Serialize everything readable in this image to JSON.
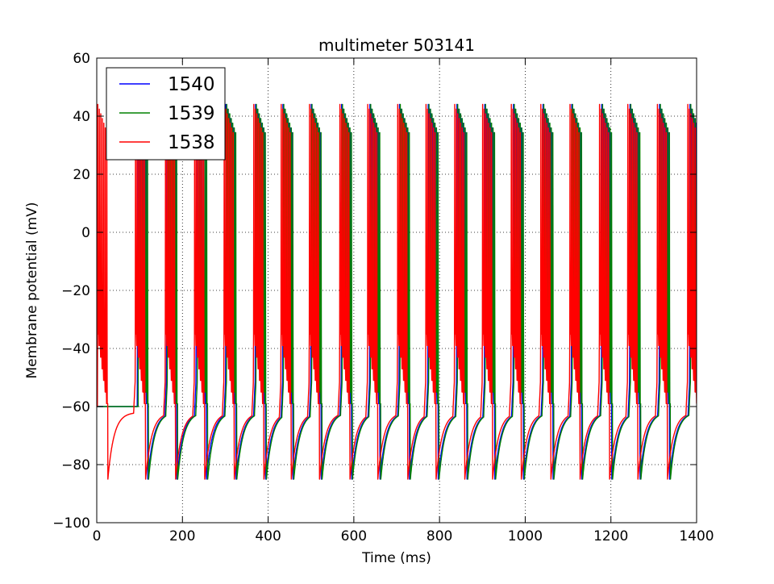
{
  "chart_data": {
    "type": "line",
    "title": "multimeter 503141",
    "xlabel": "Time (ms)",
    "ylabel": "Membrane potential (mV)",
    "xlim": [
      0,
      1400
    ],
    "ylim": [
      -100,
      60
    ],
    "xticks": [
      0,
      200,
      400,
      600,
      800,
      1000,
      1200,
      1400
    ],
    "yticks": [
      -100,
      -80,
      -60,
      -40,
      -20,
      0,
      20,
      40,
      60
    ],
    "grid": true,
    "legend_position": "top-left",
    "series": [
      {
        "name": "1540",
        "color": "#0000ff",
        "burst_times_ms": [
          95,
          163,
          232,
          301,
          370,
          434,
          500,
          571,
          637,
          706,
          773,
          840,
          905,
          972,
          1041,
          1108,
          1178,
          1244,
          1313,
          1384
        ]
      },
      {
        "name": "1539",
        "color": "#008000",
        "burst_times_ms": [
          97,
          165,
          235,
          303,
          372,
          436,
          502,
          573,
          639,
          708,
          775,
          842,
          907,
          974,
          1043,
          1110,
          1180,
          1246,
          1315,
          1386
        ]
      },
      {
        "name": "1538",
        "color": "#ff0000",
        "burst_times_ms": [
          2,
          90,
          160,
          228,
          297,
          366,
          430,
          496,
          567,
          632,
          702,
          768,
          835,
          900,
          967,
          1036,
          1104,
          1173,
          1239,
          1308,
          1379
        ]
      }
    ],
    "burst_peak_mv": 48,
    "burst_trough_mv": -85,
    "spike_interval_ms": 3.5,
    "spikes_per_burst": 7,
    "resting_potential_mv": -62,
    "initial_potential_mv": -60
  }
}
